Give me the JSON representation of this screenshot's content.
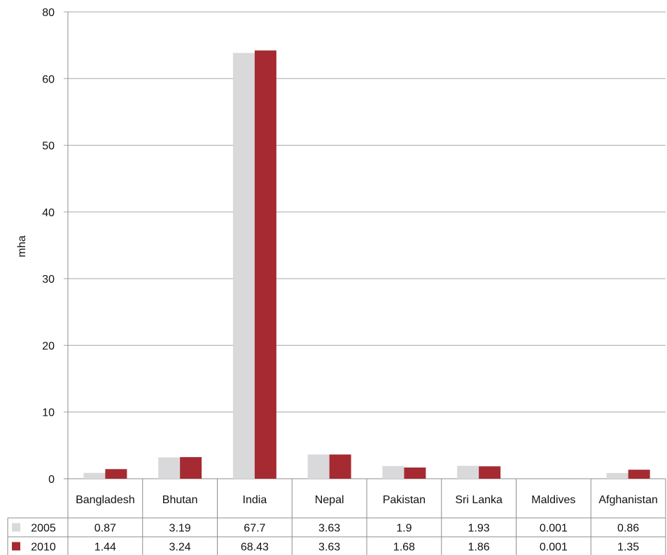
{
  "chart_data": {
    "type": "bar",
    "title": "",
    "xlabel": "",
    "ylabel": "mha",
    "categories": [
      "Bangladesh",
      "Bhutan",
      "India",
      "Nepal",
      "Pakistan",
      "Sri Lanka",
      "Maldives",
      "Afghanistan"
    ],
    "series": [
      {
        "name": "2005",
        "values": [
          0.87,
          3.19,
          67.7,
          3.63,
          1.9,
          1.93,
          0.001,
          0.86
        ],
        "labels": [
          "0.87",
          "3.19",
          "67.7",
          "3.63",
          "1.9",
          "1.93",
          "0.001",
          "0.86"
        ],
        "color": "#d9d9db"
      },
      {
        "name": "2010",
        "values": [
          1.44,
          3.24,
          68.43,
          3.63,
          1.68,
          1.86,
          0.001,
          1.35
        ],
        "labels": [
          "1.44",
          "3.24",
          "68.43",
          "3.63",
          "1.68",
          "1.86",
          "0.001",
          "1.35"
        ],
        "color": "#a52a32"
      }
    ],
    "y_ticks": [
      0,
      10,
      20,
      30,
      40,
      50,
      60,
      80
    ],
    "ylim": [
      0,
      80
    ],
    "grid": true,
    "legend": "data table",
    "colors": {
      "grid": "#a6a6a6",
      "axis": "#8c8c8c"
    }
  }
}
